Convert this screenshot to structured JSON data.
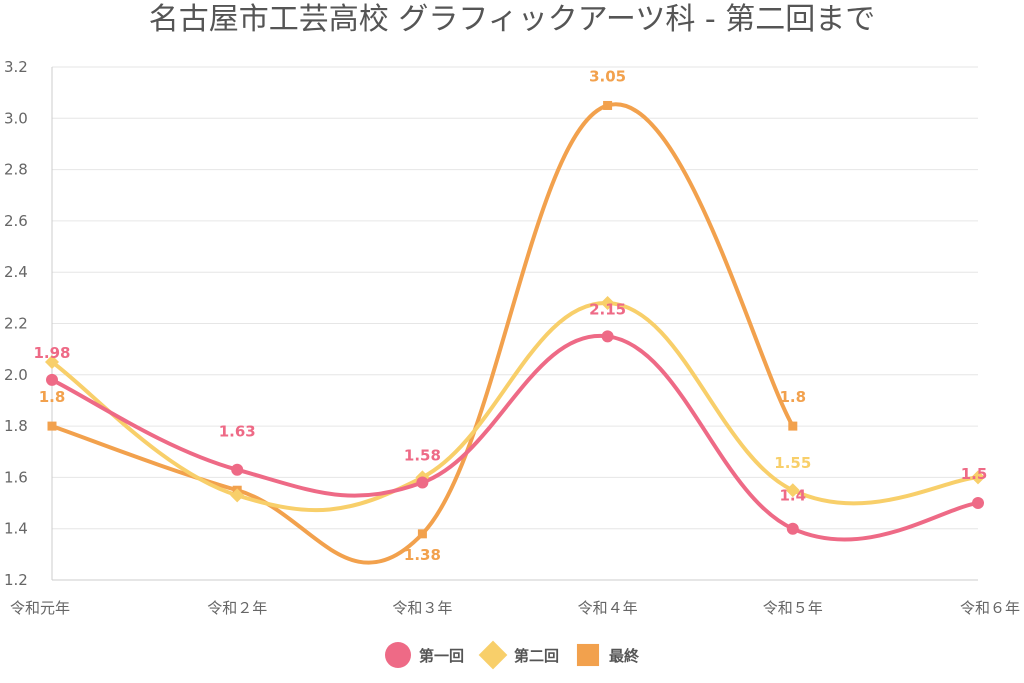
{
  "chart_data": {
    "type": "line",
    "title": "名古屋市工芸高校 グラフィックアーツ科 - 第二回まで",
    "categories": [
      "令和元年",
      "令和２年",
      "令和３年",
      "令和４年",
      "令和５年",
      "令和６年"
    ],
    "ylim": [
      1.2,
      3.2
    ],
    "yticks": [
      "1.2",
      "1.4",
      "1.6",
      "1.8",
      "2.0",
      "2.2",
      "2.4",
      "2.6",
      "2.8",
      "3.0",
      "3.2"
    ],
    "grid": true,
    "legend_position": "bottom",
    "series": [
      {
        "name": "第一回",
        "color": "#ee6a86",
        "marker": "circle",
        "values": [
          1.98,
          1.63,
          1.58,
          2.15,
          1.4,
          1.5
        ],
        "labels": [
          "1.98",
          "1.63",
          "1.58",
          "2.15",
          "1.4",
          "1.5"
        ]
      },
      {
        "name": "第二回",
        "color": "#f8cf6a",
        "marker": "diamond",
        "values": [
          2.05,
          1.53,
          1.6,
          2.28,
          1.55,
          1.6
        ],
        "labels": [
          "",
          "",
          "",
          "",
          "1.55",
          ""
        ]
      },
      {
        "name": "最終",
        "color": "#f2a14d",
        "marker": "square",
        "values": [
          1.8,
          1.55,
          1.38,
          3.05,
          1.8,
          null
        ],
        "labels": [
          "1.8",
          "",
          "1.38",
          "3.05",
          "1.8",
          ""
        ]
      }
    ]
  }
}
